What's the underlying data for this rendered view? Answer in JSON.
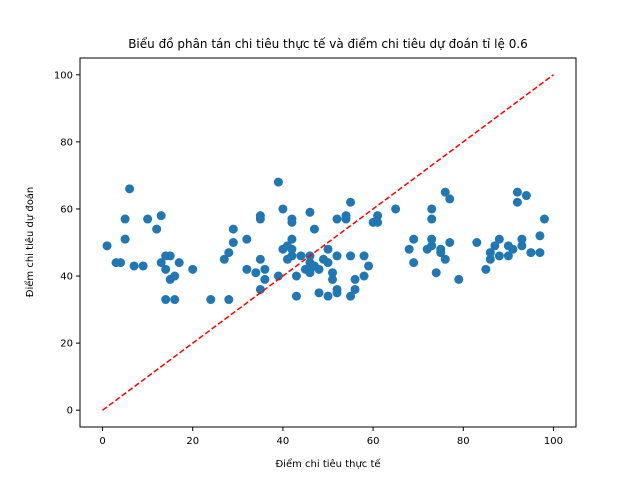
{
  "chart_data": {
    "type": "scatter",
    "title": "Biểu đồ phân tán chi tiêu thực tế và điểm chi tiêu dự đoán tỉ lệ 0.6",
    "xlabel": "Điểm chi tiêu thực tế",
    "ylabel": "Điểm chi tiêu dự đoán",
    "xlim": [
      -5,
      105
    ],
    "ylim": [
      -5,
      105
    ],
    "xticks": [
      0,
      20,
      40,
      60,
      80,
      100
    ],
    "yticks": [
      0,
      20,
      40,
      60,
      80,
      100
    ],
    "grid": false,
    "series": [
      {
        "color": "#1f77b4",
        "points": [
          [
            1,
            49
          ],
          [
            3,
            44
          ],
          [
            4,
            44
          ],
          [
            5,
            51
          ],
          [
            5,
            57
          ],
          [
            6,
            66
          ],
          [
            7,
            43
          ],
          [
            9,
            43
          ],
          [
            10,
            57
          ],
          [
            12,
            54
          ],
          [
            13,
            58
          ],
          [
            13,
            44
          ],
          [
            14,
            46
          ],
          [
            14,
            42
          ],
          [
            14,
            33
          ],
          [
            15,
            46
          ],
          [
            15,
            39
          ],
          [
            16,
            40
          ],
          [
            16,
            33
          ],
          [
            17,
            44
          ],
          [
            20,
            42
          ],
          [
            24,
            33
          ],
          [
            27,
            45
          ],
          [
            28,
            47
          ],
          [
            28,
            33
          ],
          [
            29,
            50
          ],
          [
            29,
            54
          ],
          [
            32,
            51
          ],
          [
            32,
            42
          ],
          [
            34,
            41
          ],
          [
            35,
            58
          ],
          [
            35,
            57
          ],
          [
            35,
            45
          ],
          [
            35,
            36
          ],
          [
            36,
            39
          ],
          [
            36,
            42
          ],
          [
            39,
            68
          ],
          [
            39,
            40
          ],
          [
            40,
            60
          ],
          [
            40,
            48
          ],
          [
            41,
            49
          ],
          [
            41,
            45
          ],
          [
            42,
            57
          ],
          [
            42,
            56
          ],
          [
            42,
            51
          ],
          [
            42,
            46
          ],
          [
            42,
            48
          ],
          [
            43,
            40
          ],
          [
            43,
            34
          ],
          [
            44,
            46
          ],
          [
            45,
            42
          ],
          [
            46,
            46
          ],
          [
            46,
            44
          ],
          [
            46,
            59
          ],
          [
            46,
            42
          ],
          [
            46,
            41
          ],
          [
            47,
            54
          ],
          [
            47,
            43
          ],
          [
            48,
            42
          ],
          [
            48,
            35
          ],
          [
            49,
            45
          ],
          [
            50,
            44
          ],
          [
            50,
            48
          ],
          [
            50,
            34
          ],
          [
            51,
            41
          ],
          [
            51,
            39
          ],
          [
            52,
            57
          ],
          [
            52,
            46
          ],
          [
            52,
            36
          ],
          [
            52,
            35
          ],
          [
            54,
            58
          ],
          [
            54,
            57
          ],
          [
            55,
            62
          ],
          [
            55,
            46
          ],
          [
            55,
            34
          ],
          [
            56,
            39
          ],
          [
            56,
            36
          ],
          [
            58,
            46
          ],
          [
            58,
            40
          ],
          [
            59,
            43
          ],
          [
            60,
            56
          ],
          [
            61,
            58
          ],
          [
            61,
            56
          ],
          [
            65,
            60
          ],
          [
            68,
            48
          ],
          [
            69,
            51
          ],
          [
            69,
            44
          ],
          [
            72,
            48
          ],
          [
            73,
            60
          ],
          [
            73,
            57
          ],
          [
            73,
            51
          ],
          [
            73,
            49
          ],
          [
            74,
            41
          ],
          [
            75,
            48
          ],
          [
            75,
            47
          ],
          [
            76,
            65
          ],
          [
            76,
            45
          ],
          [
            77,
            63
          ],
          [
            77,
            50
          ],
          [
            79,
            39
          ],
          [
            83,
            50
          ],
          [
            85,
            42
          ],
          [
            86,
            47
          ],
          [
            86,
            45
          ],
          [
            87,
            49
          ],
          [
            88,
            51
          ],
          [
            88,
            46
          ],
          [
            90,
            49
          ],
          [
            90,
            46
          ],
          [
            91,
            48
          ],
          [
            92,
            65
          ],
          [
            92,
            62
          ],
          [
            93,
            51
          ],
          [
            93,
            49
          ],
          [
            94,
            64
          ],
          [
            95,
            47
          ],
          [
            97,
            52
          ],
          [
            97,
            47
          ],
          [
            98,
            57
          ]
        ]
      },
      {
        "color": "#ff0000",
        "style": "dashed",
        "points": [
          [
            0,
            0
          ],
          [
            100,
            100
          ]
        ]
      }
    ]
  }
}
